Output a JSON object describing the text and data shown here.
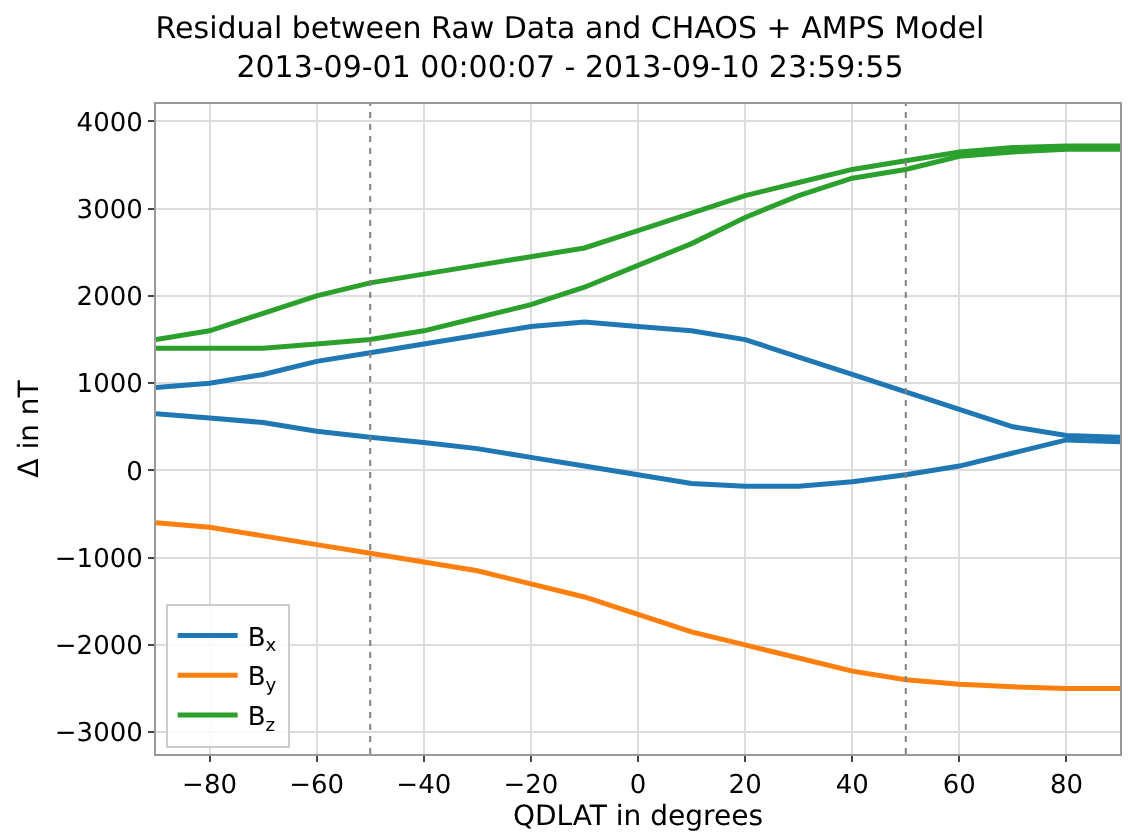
{
  "chart_data": {
    "type": "line",
    "title": "Residual between Raw Data and CHAOS + AMPS Model",
    "subtitle": "2013-09-01 00:00:07 - 2013-09-10 23:59:55",
    "xlabel": "QDLAT in degrees",
    "ylabel": "Δ in nT",
    "x": [
      -90,
      -80,
      -70,
      -60,
      -50,
      -40,
      -30,
      -20,
      -10,
      0,
      10,
      20,
      30,
      40,
      50,
      60,
      70,
      80,
      90
    ],
    "series": [
      {
        "name": "B$_{x}$",
        "color": "#1f77b4",
        "values": [
          950,
          1000,
          1100,
          1250,
          1350,
          1450,
          1550,
          1650,
          1700,
          1650,
          1600,
          1500,
          1300,
          1100,
          900,
          700,
          500,
          400,
          380
        ]
      },
      {
        "color": "#1f77b4",
        "values": [
          650,
          600,
          550,
          450,
          380,
          320,
          250,
          150,
          50,
          -50,
          -150,
          -180,
          -180,
          -130,
          -50,
          50,
          200,
          350,
          330
        ]
      },
      {
        "name": "B$_{y}$",
        "color": "#ff7f0e",
        "values": [
          -600,
          -650,
          -750,
          -850,
          -950,
          -1050,
          -1150,
          -1300,
          -1450,
          -1650,
          -1850,
          -2000,
          -2150,
          -2300,
          -2400,
          -2450,
          -2480,
          -2500,
          -2500
        ]
      },
      {
        "name": "B$_{z}$",
        "color": "#2ca02c",
        "values": [
          1500,
          1600,
          1800,
          2000,
          2150,
          2250,
          2350,
          2450,
          2550,
          2750,
          2950,
          3150,
          3300,
          3450,
          3550,
          3650,
          3700,
          3720,
          3720
        ]
      },
      {
        "color": "#2ca02c",
        "values": [
          1400,
          1400,
          1400,
          1450,
          1500,
          1600,
          1750,
          1900,
          2100,
          2350,
          2600,
          2900,
          3150,
          3350,
          3450,
          3600,
          3650,
          3680,
          3680
        ]
      }
    ],
    "xlim": [
      -90,
      90
    ],
    "ylim": [
      -3250,
      4200
    ],
    "xticks": [
      {
        "value": -80,
        "label": "−80"
      },
      {
        "value": -60,
        "label": "−60"
      },
      {
        "value": -40,
        "label": "−40"
      },
      {
        "value": -20,
        "label": "−20"
      },
      0,
      20,
      40,
      60,
      80
    ],
    "yticks": [
      {
        "value": -3000,
        "label": "−3000"
      },
      {
        "value": -2000,
        "label": "−2000"
      },
      {
        "value": -1000,
        "label": "−1000"
      },
      0,
      1000,
      2000,
      3000,
      4000
    ],
    "ref_lines": [
      {
        "axis": "x",
        "value": -50,
        "color": "#808080",
        "line_style": "dotted"
      },
      {
        "axis": "x",
        "value": 50,
        "color": "#808080",
        "line_style": "dotted"
      }
    ],
    "grid": true,
    "legend": "bottom left",
    "marker": "none",
    "line_style": "solid"
  }
}
